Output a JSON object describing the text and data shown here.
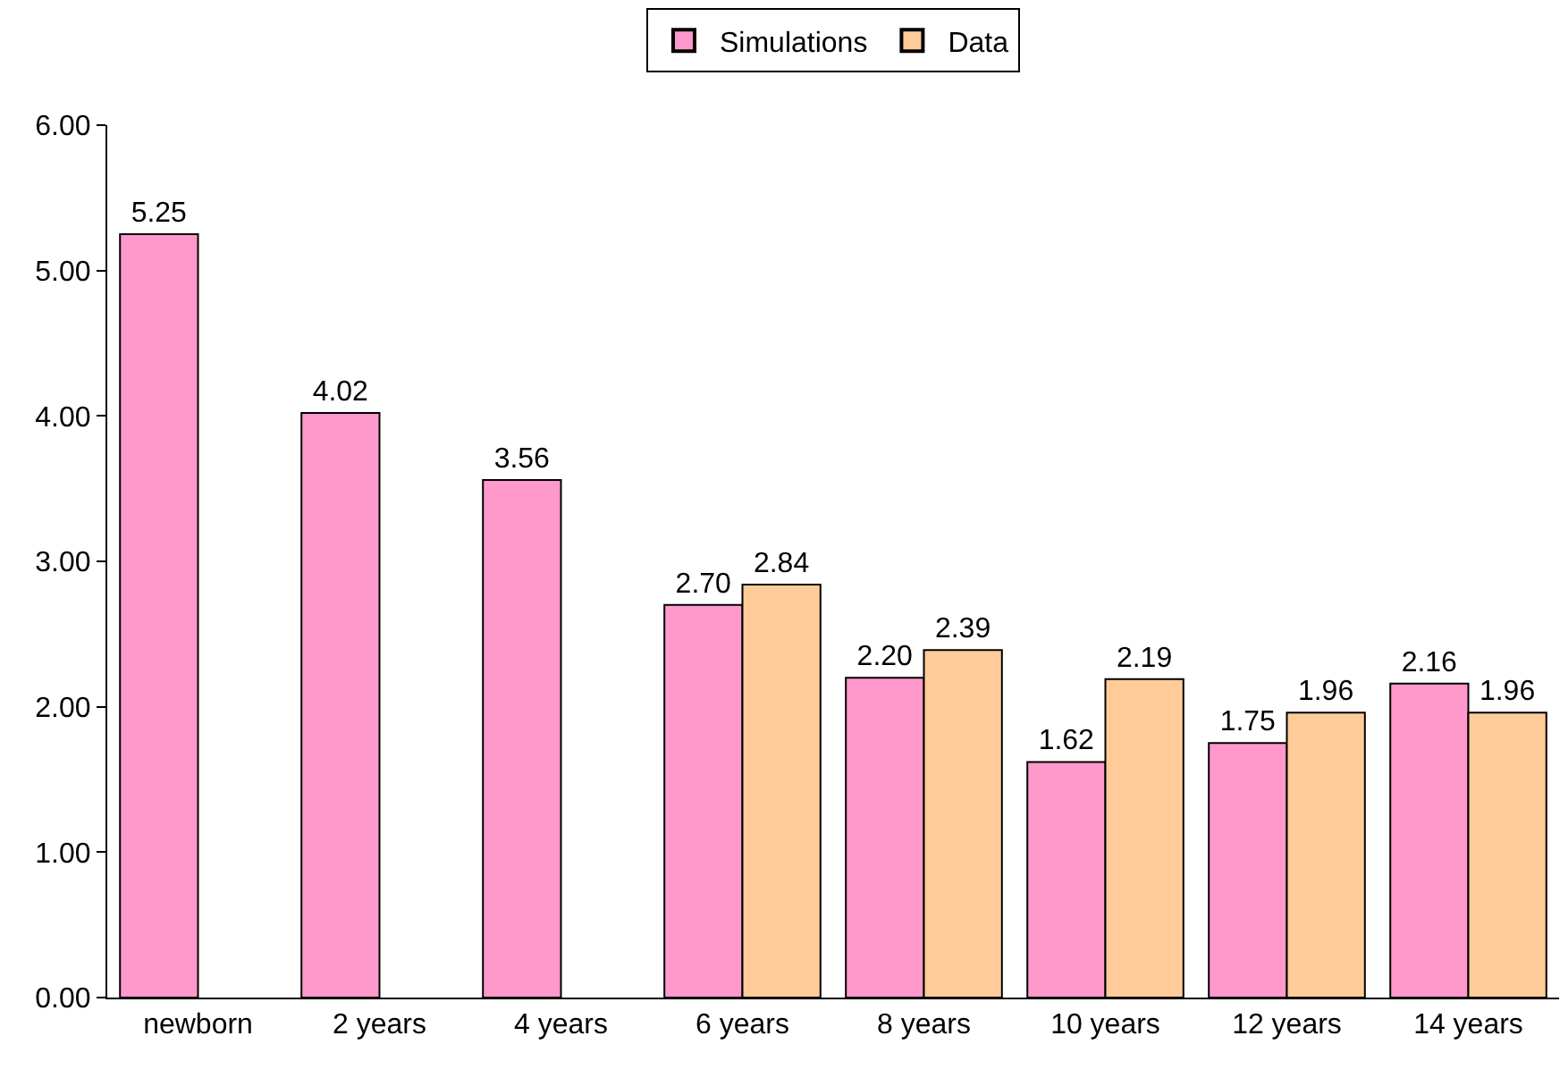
{
  "chart_data": {
    "type": "bar",
    "categories": [
      "newborn",
      "2 years",
      "4 years",
      "6 years",
      "8 years",
      "10 years",
      "12 years",
      "14 years"
    ],
    "series": [
      {
        "name": "Simulations",
        "color": "#ff99cc",
        "values": [
          5.25,
          4.02,
          3.56,
          2.7,
          2.2,
          1.62,
          1.75,
          2.16
        ],
        "value_labels": [
          "5.25",
          "4.02",
          "3.56",
          "2.70",
          "2.20",
          "1.62",
          "1.75",
          "2.16"
        ]
      },
      {
        "name": "Data",
        "color": "#ffcc99",
        "values": [
          null,
          null,
          null,
          2.84,
          2.39,
          2.19,
          1.96,
          1.96
        ],
        "value_labels": [
          null,
          null,
          null,
          "2.84",
          "2.39",
          "2.19",
          "1.96",
          "1.96"
        ]
      }
    ],
    "ylim": [
      0,
      6
    ],
    "yticks": [
      {
        "value": 0,
        "label": "0.00"
      },
      {
        "value": 1,
        "label": "1.00"
      },
      {
        "value": 2,
        "label": "2.00"
      },
      {
        "value": 3,
        "label": "3.00"
      },
      {
        "value": 4,
        "label": "4.00"
      },
      {
        "value": 5,
        "label": "5.00"
      },
      {
        "value": 6,
        "label": "6.00"
      }
    ],
    "grid": false,
    "legend": "top"
  }
}
